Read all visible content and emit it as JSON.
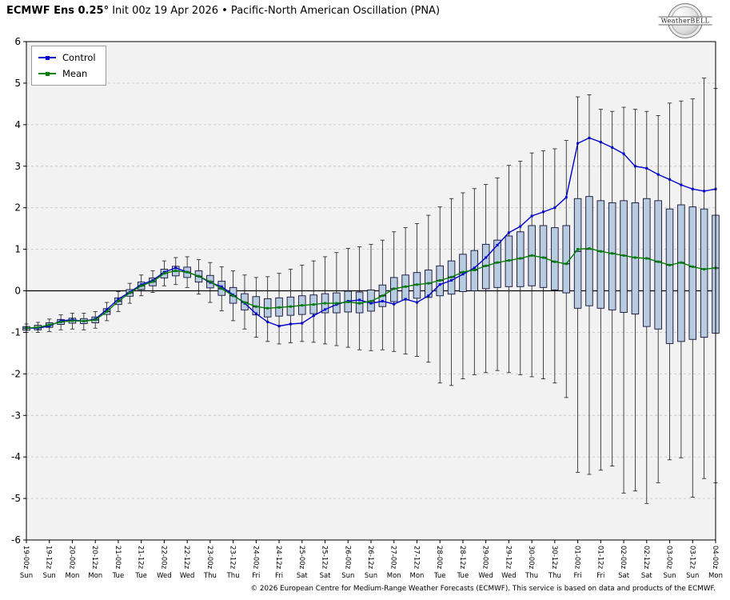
{
  "header": {
    "title_bold": "ECMWF Ens 0.25°",
    "title_rest": " Init 00z 19 Apr 2026 • Pacific-North American Oscillation (PNA)",
    "logo_text": "WeatherBELL"
  },
  "legend": {
    "control": "Control",
    "mean": "Mean"
  },
  "footer": {
    "copyright": "© 2026 European Centre for Medium-Range Weather Forecasts (ECMWF). This service is based on data and products of the ECMWF."
  },
  "chart_data": {
    "type": "box-whisker+line",
    "title": "Pacific-North American Oscillation (PNA)",
    "model": "ECMWF Ens 0.25°",
    "init": "Init 00z 19 Apr 2026",
    "xlabel": "",
    "ylabel": "",
    "ylim": [
      -6,
      6
    ],
    "yticks": [
      -6,
      -5,
      -4,
      -3,
      -2,
      -1,
      0,
      1,
      2,
      3,
      4,
      5,
      6
    ],
    "step_hours": 6,
    "label_every": 2,
    "grid": true,
    "legend_position": "top-left",
    "colors": {
      "plot_bg": "#f2f2f2",
      "grid": "#c8c8c8",
      "axis": "#000000"
    },
    "x_labels": [
      {
        "label": "19-00z",
        "day": "Sun"
      },
      {
        "label": "19-12z",
        "day": "Sun"
      },
      {
        "label": "20-00z",
        "day": "Mon"
      },
      {
        "label": "20-12z",
        "day": "Mon"
      },
      {
        "label": "21-00z",
        "day": "Tue"
      },
      {
        "label": "21-12z",
        "day": "Tue"
      },
      {
        "label": "22-00z",
        "day": "Wed"
      },
      {
        "label": "22-12z",
        "day": "Wed"
      },
      {
        "label": "23-00z",
        "day": "Thu"
      },
      {
        "label": "23-12z",
        "day": "Thu"
      },
      {
        "label": "24-00z",
        "day": "Fri"
      },
      {
        "label": "24-12z",
        "day": "Fri"
      },
      {
        "label": "25-00z",
        "day": "Sat"
      },
      {
        "label": "25-12z",
        "day": "Sat"
      },
      {
        "label": "26-00z",
        "day": "Sun"
      },
      {
        "label": "26-12z",
        "day": "Sun"
      },
      {
        "label": "27-00z",
        "day": "Mon"
      },
      {
        "label": "27-12z",
        "day": "Mon"
      },
      {
        "label": "28-00z",
        "day": "Tue"
      },
      {
        "label": "28-12z",
        "day": "Tue"
      },
      {
        "label": "29-00z",
        "day": "Wed"
      },
      {
        "label": "29-12z",
        "day": "Wed"
      },
      {
        "label": "30-00z",
        "day": "Thu"
      },
      {
        "label": "30-12z",
        "day": "Thu"
      },
      {
        "label": "01-00z",
        "day": "Fri"
      },
      {
        "label": "01-12z",
        "day": "Fri"
      },
      {
        "label": "02-00z",
        "day": "Sat"
      },
      {
        "label": "02-12z",
        "day": "Sat"
      },
      {
        "label": "03-00z",
        "day": "Sun"
      },
      {
        "label": "03-12z",
        "day": "Sun"
      },
      {
        "label": "04-00z",
        "day": "Mon"
      }
    ],
    "series": [
      {
        "name": "Control",
        "color": "#0000cc",
        "values": [
          -0.9,
          -0.9,
          -0.85,
          -0.72,
          -0.7,
          -0.73,
          -0.68,
          -0.45,
          -0.2,
          -0.03,
          0.15,
          0.25,
          0.45,
          0.55,
          0.45,
          0.35,
          0.2,
          0.1,
          -0.1,
          -0.3,
          -0.55,
          -0.75,
          -0.85,
          -0.8,
          -0.78,
          -0.6,
          -0.45,
          -0.33,
          -0.25,
          -0.22,
          -0.3,
          -0.25,
          -0.32,
          -0.2,
          -0.28,
          -0.12,
          0.15,
          0.25,
          0.4,
          0.55,
          0.8,
          1.1,
          1.4,
          1.55,
          1.8,
          1.9,
          2.0,
          2.25,
          3.55,
          3.68,
          3.58,
          3.45,
          3.3,
          3.0,
          2.95,
          2.8,
          2.68,
          2.55,
          2.45,
          2.4,
          2.45
        ]
      },
      {
        "name": "Mean",
        "color": "#008000",
        "values": [
          -0.9,
          -0.88,
          -0.82,
          -0.75,
          -0.72,
          -0.73,
          -0.7,
          -0.5,
          -0.25,
          -0.05,
          0.12,
          0.22,
          0.42,
          0.48,
          0.45,
          0.35,
          0.22,
          0.05,
          -0.12,
          -0.28,
          -0.38,
          -0.42,
          -0.4,
          -0.38,
          -0.35,
          -0.33,
          -0.3,
          -0.3,
          -0.27,
          -0.3,
          -0.25,
          -0.12,
          0.05,
          0.1,
          0.15,
          0.18,
          0.25,
          0.33,
          0.45,
          0.5,
          0.6,
          0.68,
          0.73,
          0.78,
          0.85,
          0.8,
          0.7,
          0.65,
          1.0,
          1.02,
          0.95,
          0.9,
          0.85,
          0.8,
          0.78,
          0.7,
          0.62,
          0.68,
          0.58,
          0.52,
          0.55
        ]
      }
    ],
    "boxes": {
      "fill": "#b9cbdf",
      "edge": "#10103a",
      "whisker": "#1a1a1a",
      "stats_order": [
        "whisker_low",
        "q1",
        "median",
        "q3",
        "whisker_high"
      ],
      "values": [
        [
          -1.0,
          -0.95,
          -0.9,
          -0.86,
          -0.8
        ],
        [
          -1.0,
          -0.94,
          -0.88,
          -0.83,
          -0.76
        ],
        [
          -0.98,
          -0.88,
          -0.82,
          -0.77,
          -0.68
        ],
        [
          -0.94,
          -0.81,
          -0.75,
          -0.69,
          -0.58
        ],
        [
          -0.92,
          -0.78,
          -0.72,
          -0.66,
          -0.54
        ],
        [
          -0.94,
          -0.79,
          -0.73,
          -0.67,
          -0.54
        ],
        [
          -0.9,
          -0.77,
          -0.7,
          -0.63,
          -0.5
        ],
        [
          -0.72,
          -0.57,
          -0.5,
          -0.43,
          -0.28
        ],
        [
          -0.5,
          -0.33,
          -0.25,
          -0.17,
          -0.02
        ],
        [
          -0.3,
          -0.13,
          -0.05,
          0.03,
          0.18
        ],
        [
          -0.12,
          0.03,
          0.12,
          0.21,
          0.38
        ],
        [
          -0.04,
          0.12,
          0.22,
          0.31,
          0.48
        ],
        [
          0.12,
          0.31,
          0.42,
          0.52,
          0.72
        ],
        [
          0.15,
          0.36,
          0.48,
          0.59,
          0.8
        ],
        [
          0.08,
          0.32,
          0.45,
          0.57,
          0.82
        ],
        [
          -0.08,
          0.21,
          0.35,
          0.48,
          0.75
        ],
        [
          -0.28,
          0.07,
          0.22,
          0.37,
          0.68
        ],
        [
          -0.48,
          -0.11,
          0.05,
          0.23,
          0.58
        ],
        [
          -0.72,
          -0.3,
          -0.12,
          0.08,
          0.48
        ],
        [
          -0.92,
          -0.46,
          -0.28,
          -0.07,
          0.38
        ],
        [
          -1.12,
          -0.58,
          -0.38,
          -0.14,
          0.32
        ],
        [
          -1.22,
          -0.63,
          -0.42,
          -0.19,
          0.34
        ],
        [
          -1.28,
          -0.61,
          -0.4,
          -0.17,
          0.42
        ],
        [
          -1.25,
          -0.59,
          -0.38,
          -0.15,
          0.52
        ],
        [
          -1.22,
          -0.57,
          -0.35,
          -0.12,
          0.62
        ],
        [
          -1.24,
          -0.55,
          -0.33,
          -0.1,
          0.72
        ],
        [
          -1.28,
          -0.53,
          -0.3,
          -0.07,
          0.82
        ],
        [
          -1.32,
          -0.53,
          -0.3,
          -0.05,
          0.92
        ],
        [
          -1.36,
          -0.51,
          -0.27,
          -0.01,
          1.02
        ],
        [
          -1.42,
          -0.53,
          -0.3,
          -0.03,
          1.06
        ],
        [
          -1.44,
          -0.49,
          -0.25,
          0.02,
          1.12
        ],
        [
          -1.42,
          -0.38,
          -0.12,
          0.14,
          1.22
        ],
        [
          -1.46,
          -0.26,
          0.05,
          0.32,
          1.42
        ],
        [
          -1.52,
          -0.22,
          0.1,
          0.38,
          1.52
        ],
        [
          -1.58,
          -0.18,
          0.15,
          0.44,
          1.62
        ],
        [
          -1.72,
          -0.16,
          0.18,
          0.5,
          1.82
        ],
        [
          -2.22,
          -0.12,
          0.25,
          0.6,
          2.02
        ],
        [
          -2.28,
          -0.08,
          0.33,
          0.72,
          2.22
        ],
        [
          -2.12,
          -0.02,
          0.45,
          0.88,
          2.36
        ],
        [
          -2.02,
          0.0,
          0.5,
          0.97,
          2.46
        ],
        [
          -1.97,
          0.05,
          0.6,
          1.12,
          2.56
        ],
        [
          -1.92,
          0.08,
          0.68,
          1.22,
          2.72
        ],
        [
          -1.97,
          0.1,
          0.73,
          1.32,
          3.02
        ],
        [
          -2.02,
          0.1,
          0.78,
          1.42,
          3.12
        ],
        [
          -2.07,
          0.12,
          0.85,
          1.57,
          3.32
        ],
        [
          -2.12,
          0.08,
          0.8,
          1.57,
          3.37
        ],
        [
          -2.22,
          0.02,
          0.7,
          1.52,
          3.42
        ],
        [
          -2.57,
          -0.05,
          0.65,
          1.57,
          3.62
        ],
        [
          -4.37,
          -0.42,
          0.95,
          2.22,
          4.67
        ],
        [
          -4.42,
          -0.36,
          1.0,
          2.27,
          4.72
        ],
        [
          -4.32,
          -0.42,
          0.95,
          2.17,
          4.37
        ],
        [
          -4.22,
          -0.46,
          0.9,
          2.12,
          4.32
        ],
        [
          -4.87,
          -0.52,
          0.85,
          2.17,
          4.42
        ],
        [
          -4.82,
          -0.56,
          0.8,
          2.12,
          4.37
        ],
        [
          -5.12,
          -0.86,
          0.78,
          2.22,
          4.32
        ],
        [
          -4.62,
          -0.92,
          0.7,
          2.17,
          4.22
        ],
        [
          -4.07,
          -1.27,
          0.62,
          1.97,
          4.52
        ],
        [
          -4.02,
          -1.22,
          0.68,
          2.07,
          4.57
        ],
        [
          -4.97,
          -1.17,
          0.58,
          2.02,
          4.62
        ],
        [
          -4.52,
          -1.12,
          0.52,
          1.97,
          5.12
        ],
        [
          -4.62,
          -1.02,
          0.55,
          1.82,
          4.87
        ]
      ]
    }
  }
}
